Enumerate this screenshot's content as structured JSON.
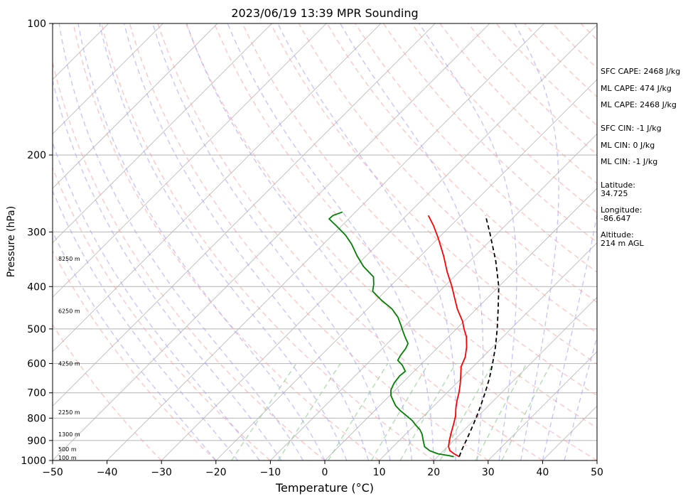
{
  "chart_data": {
    "type": "line",
    "title": "2023/06/19 13:39 MPR Sounding",
    "xlabel": "Temperature (°C)",
    "ylabel": "Pressure (hPa)",
    "xlim": [
      -50,
      50
    ],
    "ylim": [
      1000,
      100
    ],
    "yscale": "log",
    "skew": "45 degrees",
    "x_ticks": [
      -50,
      -40,
      -30,
      -20,
      -10,
      0,
      10,
      20,
      30,
      40,
      50
    ],
    "x_tick_labels": [
      "−50",
      "−40",
      "−30",
      "−20",
      "−10",
      "0",
      "10",
      "20",
      "30",
      "40",
      "50"
    ],
    "y_ticks": [
      1000,
      900,
      800,
      700,
      600,
      500,
      400,
      300,
      200,
      100
    ],
    "y_tick_labels": [
      "1000",
      "900",
      "800",
      "700",
      "600",
      "500",
      "400",
      "300",
      "200",
      "100"
    ],
    "grid": true,
    "series": [
      {
        "role": "temperature",
        "color": "#ff0000",
        "style": "solid",
        "points": [
          [
            980,
            24
          ],
          [
            965,
            22.5
          ],
          [
            950,
            21.2
          ],
          [
            930,
            20.2
          ],
          [
            900,
            19.2
          ],
          [
            860,
            18
          ],
          [
            820,
            16.8
          ],
          [
            790,
            15.8
          ],
          [
            760,
            14.5
          ],
          [
            730,
            13.3
          ],
          [
            700,
            12.2
          ],
          [
            670,
            10.9
          ],
          [
            640,
            9.4
          ],
          [
            610,
            7.8
          ],
          [
            580,
            6.8
          ],
          [
            550,
            5.2
          ],
          [
            520,
            3.2
          ],
          [
            500,
            1.4
          ],
          [
            480,
            -0.3
          ],
          [
            450,
            -3.5
          ],
          [
            420,
            -6.5
          ],
          [
            400,
            -8.6
          ],
          [
            370,
            -12.2
          ],
          [
            340,
            -15.8
          ],
          [
            310,
            -20
          ],
          [
            290,
            -23.2
          ],
          [
            275,
            -26
          ]
        ]
      },
      {
        "role": "dewpoint",
        "color": "#008000",
        "style": "solid",
        "points": [
          [
            980,
            23
          ],
          [
            975,
            22
          ],
          [
            965,
            19.5
          ],
          [
            950,
            17.5
          ],
          [
            930,
            15.8
          ],
          [
            900,
            14.4
          ],
          [
            870,
            13
          ],
          [
            850,
            11.8
          ],
          [
            830,
            10.2
          ],
          [
            810,
            8.7
          ],
          [
            790,
            6.8
          ],
          [
            770,
            4.8
          ],
          [
            750,
            3
          ],
          [
            730,
            1.6
          ],
          [
            710,
            0.2
          ],
          [
            690,
            -0.8
          ],
          [
            665,
            -1.5
          ],
          [
            640,
            -1.8
          ],
          [
            625,
            -1.6
          ],
          [
            605,
            -3.3
          ],
          [
            590,
            -5
          ],
          [
            575,
            -5.4
          ],
          [
            555,
            -5.7
          ],
          [
            540,
            -6.2
          ],
          [
            520,
            -8.1
          ],
          [
            505,
            -9.5
          ],
          [
            490,
            -10.9
          ],
          [
            470,
            -12.9
          ],
          [
            450,
            -15.5
          ],
          [
            430,
            -19
          ],
          [
            410,
            -22.3
          ],
          [
            395,
            -23.4
          ],
          [
            380,
            -24.8
          ],
          [
            360,
            -28.5
          ],
          [
            340,
            -31.7
          ],
          [
            320,
            -34.8
          ],
          [
            305,
            -37.6
          ],
          [
            290,
            -41.1
          ],
          [
            280,
            -43.6
          ],
          [
            275,
            -43.5
          ],
          [
            270,
            -42.4
          ]
        ]
      },
      {
        "role": "parcel",
        "color": "#000000",
        "style": "dashed",
        "points": [
          [
            980,
            24
          ],
          [
            950,
            23.3
          ],
          [
            900,
            22.3
          ],
          [
            850,
            21.2
          ],
          [
            800,
            20
          ],
          [
            750,
            18.6
          ],
          [
            700,
            17
          ],
          [
            650,
            15.2
          ],
          [
            600,
            13
          ],
          [
            550,
            10.5
          ],
          [
            500,
            7.5
          ],
          [
            450,
            4
          ],
          [
            400,
            0
          ],
          [
            350,
            -5.2
          ],
          [
            300,
            -11.7
          ],
          [
            275,
            -15.5
          ]
        ]
      }
    ],
    "height_labels": [
      "100 m",
      "500 m",
      "1300 m",
      "2250 m",
      "4250 m",
      "6250 m",
      "8250 m"
    ],
    "height_label_pressures": [
      985,
      942,
      870,
      775,
      600,
      455,
      345
    ]
  },
  "stats": {
    "sfc_cape": "SFC CAPE: 2468 J/kg",
    "ml_cape_1": "ML CAPE: 474 J/kg",
    "ml_cape_2": "ML CAPE: 2468 J/kg",
    "sfc_cin": "SFC CIN: -1 J/kg",
    "ml_cin_1": "ML CIN: 0 J/kg",
    "ml_cin_2": "ML CIN: -1 J/kg",
    "latitude_label": "Latitude:",
    "latitude_value": "34.725",
    "longitude_label": "Longitude:",
    "longitude_value": "-86.647",
    "altitude_label": "Altitude:",
    "altitude_value": "214 m AGL"
  },
  "colors": {
    "dry_adiabat": "#ff9b9b",
    "moist_adiabat": "#9b9bff",
    "mixing_ratio": "#8fc98f",
    "isotherm": "#b4b4b4"
  }
}
